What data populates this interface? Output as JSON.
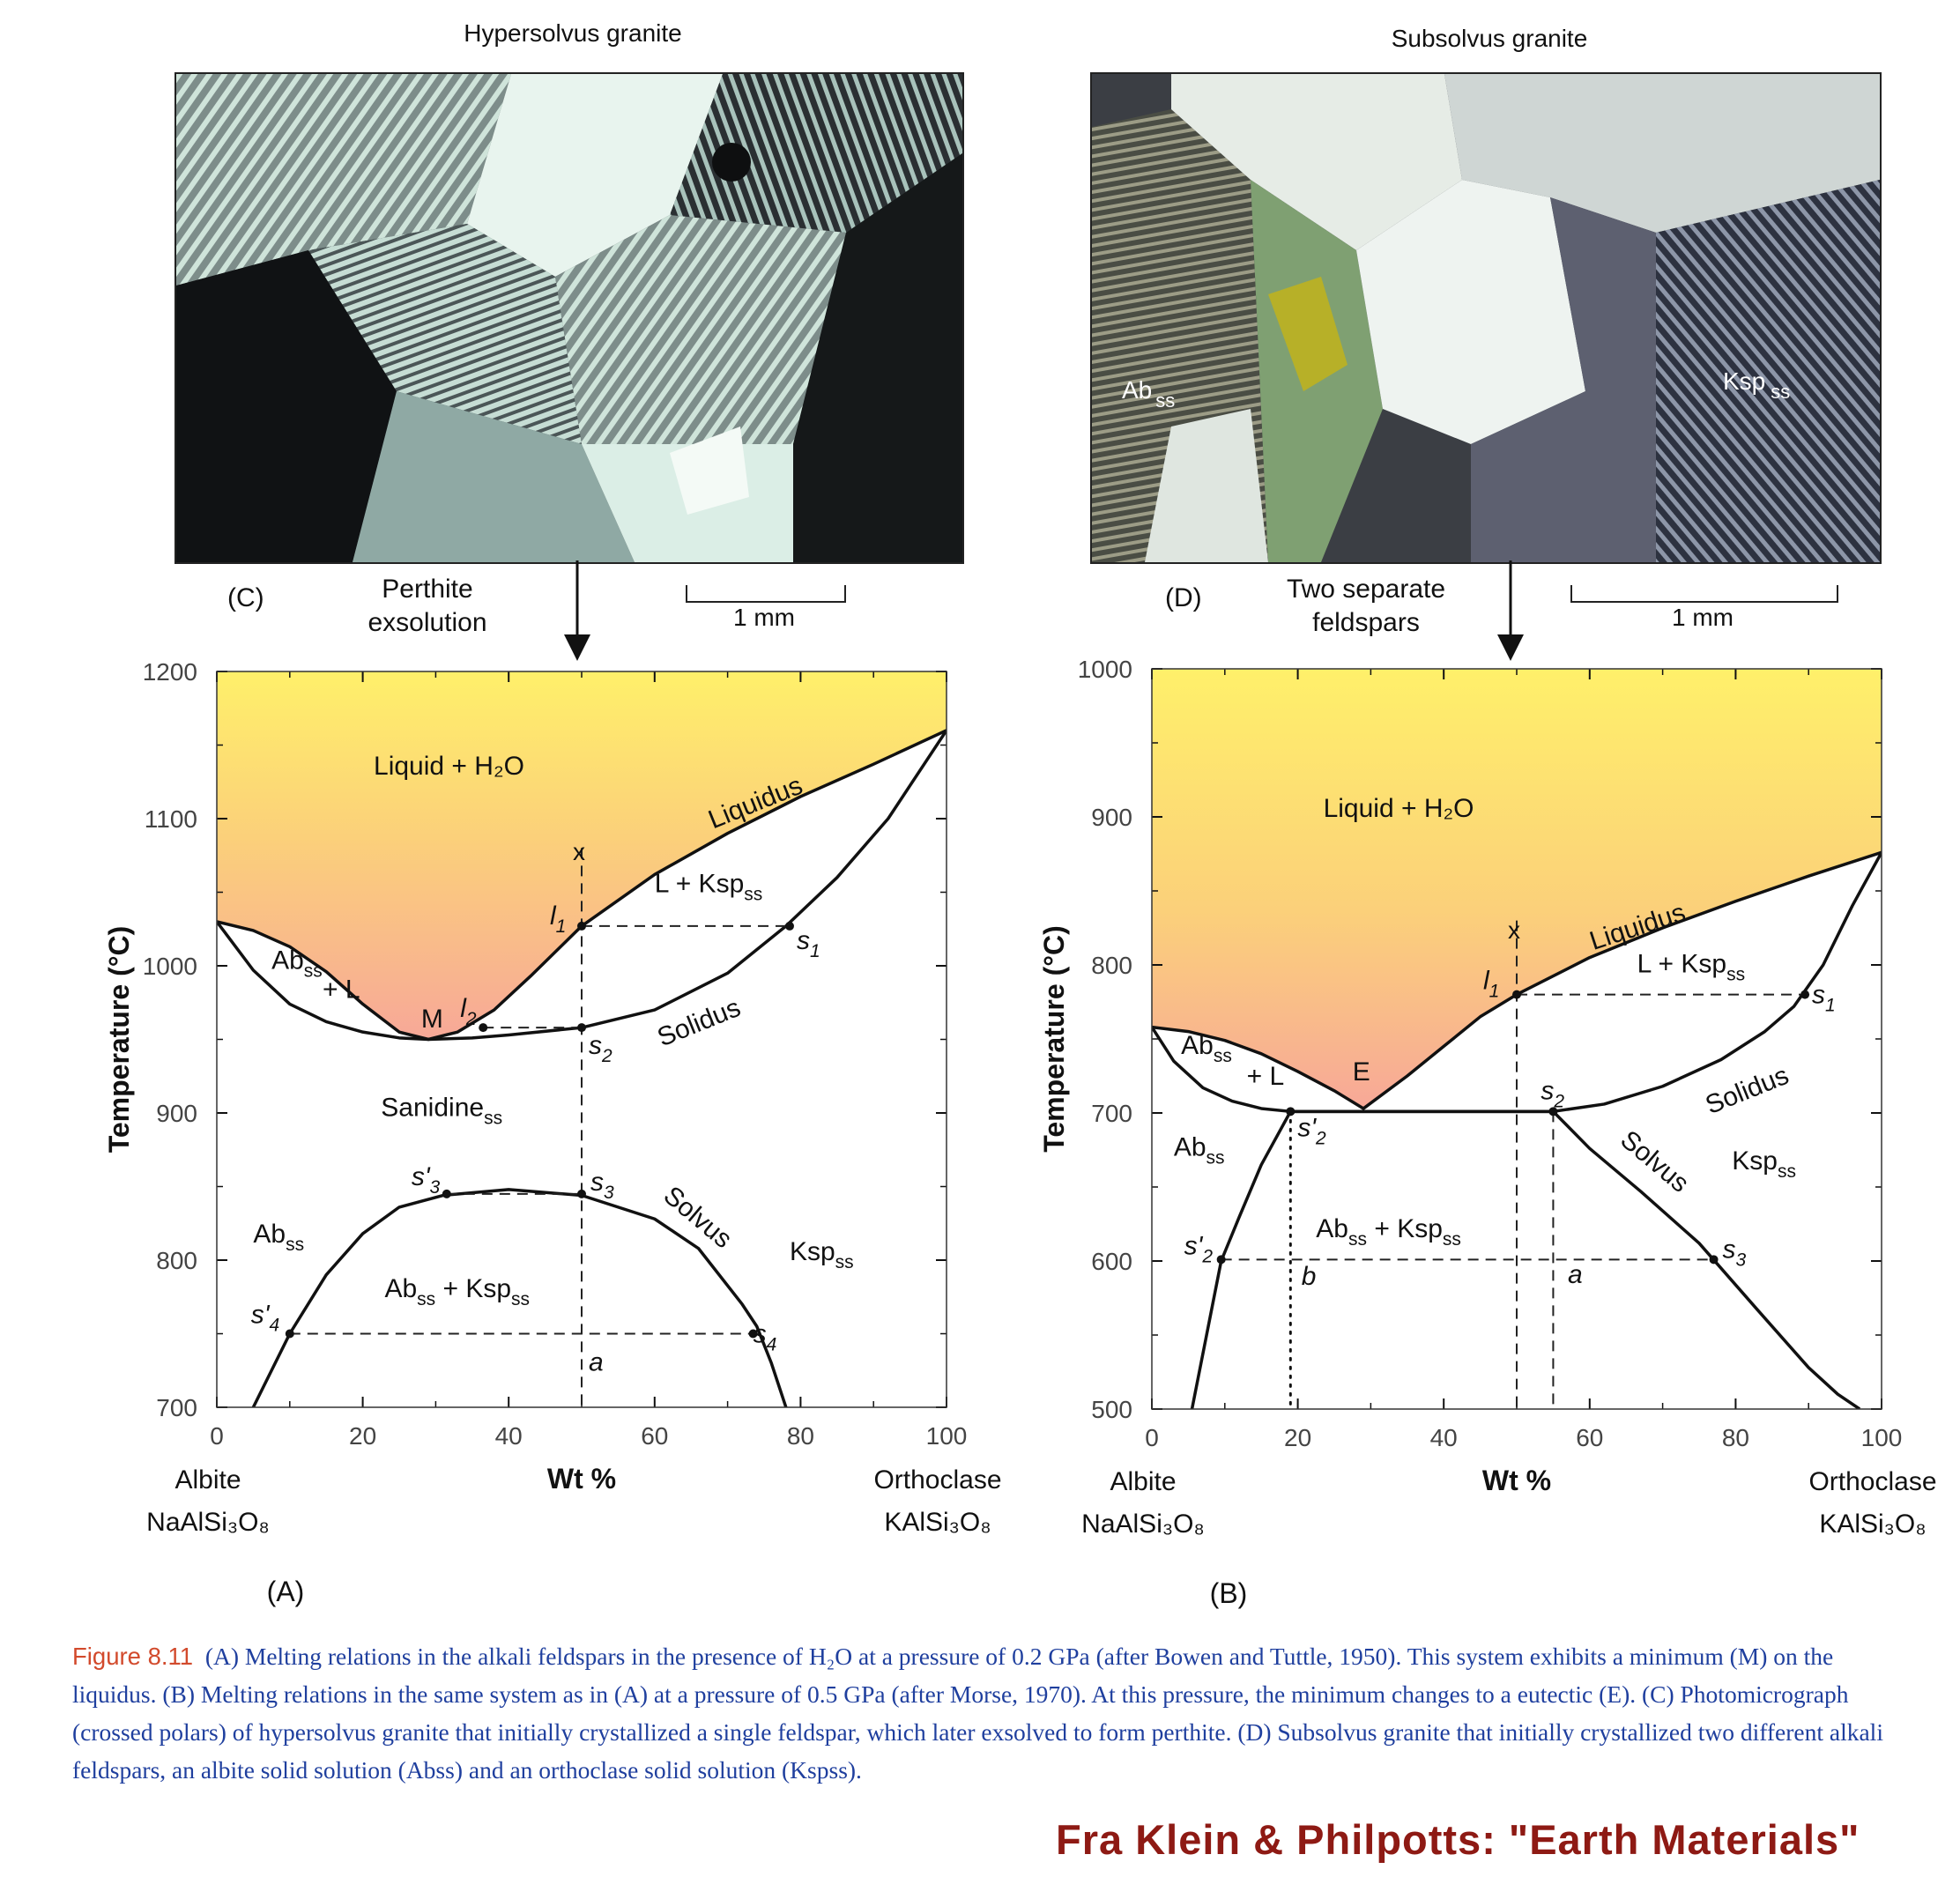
{
  "photos": {
    "left": {
      "title": "Hypersolvus granite",
      "panel": "(C)",
      "annotation": [
        "Perthite",
        "exsolution"
      ],
      "scale": "1 mm"
    },
    "right": {
      "title": "Subsolvus granite",
      "panel": "(D)",
      "annotation": [
        "Two separate",
        "feldspars"
      ],
      "scale": "1 mm",
      "labels": {
        "ab": "Ab",
        "ab_sub": "ss",
        "ksp": "Ksp",
        "ksp_sub": "ss"
      }
    }
  },
  "chart_data": [
    {
      "panel": "(A)",
      "type": "line",
      "xlabel": "Wt %",
      "ylabel": "Temperature (°C)",
      "xlim": [
        0,
        100
      ],
      "ylim": [
        700,
        1200
      ],
      "xticks": [
        0,
        20,
        40,
        60,
        80,
        100
      ],
      "yticks": [
        700,
        800,
        900,
        1000,
        1100,
        1200
      ],
      "x_endmembers": {
        "left": [
          "Albite",
          "NaAlSi₃O₈"
        ],
        "right": [
          "Orthoclase",
          "KAlSi₃O₈"
        ]
      },
      "series": [
        {
          "name": "Liquidus",
          "x": [
            0,
            5,
            10,
            15,
            20,
            25,
            29,
            33,
            38,
            43,
            50,
            60,
            70,
            80,
            90,
            100
          ],
          "y": [
            1030,
            1024,
            1013,
            996,
            974,
            955,
            950,
            955,
            970,
            993,
            1027,
            1062,
            1090,
            1115,
            1137,
            1160
          ]
        },
        {
          "name": "Solidus",
          "x": [
            0,
            5,
            10,
            15,
            20,
            25,
            29,
            35,
            40,
            50,
            60,
            70,
            78,
            85,
            92,
            100
          ],
          "y": [
            1030,
            997,
            974,
            962,
            955,
            951,
            950,
            951,
            953,
            958,
            970,
            995,
            1027,
            1060,
            1100,
            1160
          ]
        },
        {
          "name": "Solvus",
          "x": [
            5,
            8,
            10,
            15,
            20,
            25,
            31,
            40,
            50,
            60,
            66,
            72,
            74,
            76,
            78
          ],
          "y": [
            700,
            730,
            750,
            790,
            818,
            836,
            844,
            848,
            844,
            828,
            808,
            770,
            755,
            730,
            700
          ]
        }
      ],
      "points": [
        {
          "label": "l",
          "sub": "1",
          "x": 50,
          "y": 1027
        },
        {
          "label": "s",
          "sub": "1",
          "x": 78.5,
          "y": 1027
        },
        {
          "label": "l",
          "sub": "2",
          "x": 36.5,
          "y": 958
        },
        {
          "label": "s",
          "sub": "2",
          "x": 50,
          "y": 958
        },
        {
          "label": "s'",
          "sub": "3",
          "x": 31.5,
          "y": 845
        },
        {
          "label": "s",
          "sub": "3",
          "x": 50,
          "y": 845
        },
        {
          "label": "s'",
          "sub": "4",
          "x": 10,
          "y": 750
        },
        {
          "label": "s",
          "sub": "4",
          "x": 73.5,
          "y": 750
        }
      ],
      "markers": {
        "x_mark": "x",
        "a_mark": "a",
        "min_label": "M"
      },
      "fields": {
        "liquid": "Liquid + H₂O",
        "lksp": "L + Ksp",
        "lksp_sub": "ss",
        "abl1": "Ab",
        "abl1_sub": "ss",
        "abl2": "+ L",
        "sanidine": "Sanidine",
        "sanidine_sub": "ss",
        "ab": "Ab",
        "ab_sub": "ss",
        "ksp": "Ksp",
        "ksp_sub": "ss",
        "abksp1": "Ab",
        "abksp1_sub": "ss",
        "abksp2": " + Ksp",
        "abksp2_sub": "ss"
      },
      "curve_labels": {
        "liquidus": "Liquidus",
        "solidus": "Solidus",
        "solvus": "Solvus"
      }
    },
    {
      "panel": "(B)",
      "type": "line",
      "xlabel": "Wt %",
      "ylabel": "Temperature (°C)",
      "xlim": [
        0,
        100
      ],
      "ylim": [
        500,
        1000
      ],
      "xticks": [
        0,
        20,
        40,
        60,
        80,
        100
      ],
      "yticks": [
        500,
        600,
        700,
        800,
        900,
        1000
      ],
      "x_endmembers": {
        "left": [
          "Albite",
          "NaAlSi₃O₈"
        ],
        "right": [
          "Orthoclase",
          "KAlSi₃O₈"
        ]
      },
      "series": [
        {
          "name": "Liquidus",
          "x": [
            0,
            5,
            10,
            15,
            20,
            25,
            29,
            35,
            40,
            45,
            50,
            60,
            70,
            80,
            90,
            100
          ],
          "y": [
            758,
            755,
            749,
            740,
            728,
            715,
            703,
            725,
            745,
            765,
            780,
            805,
            825,
            843,
            860,
            876
          ]
        },
        {
          "name": "Solidus",
          "x": [
            0,
            3,
            7,
            11,
            15,
            19,
            19,
            55,
            55,
            62,
            70,
            78,
            84,
            88,
            92,
            96,
            100
          ],
          "y": [
            758,
            735,
            717,
            708,
            703,
            701,
            701,
            701,
            701,
            706,
            718,
            736,
            755,
            772,
            800,
            840,
            876
          ]
        },
        {
          "name": "Solvus",
          "x": [
            5.5,
            7.5,
            9.5,
            12,
            15,
            19,
            19,
            55,
            60,
            67,
            75,
            83,
            90,
            94,
            97
          ],
          "y": [
            500,
            550,
            600,
            630,
            665,
            701,
            701,
            701,
            676,
            647,
            612,
            567,
            528,
            510,
            500
          ]
        }
      ],
      "points": [
        {
          "label": "l",
          "sub": "1",
          "x": 50,
          "y": 780
        },
        {
          "label": "s",
          "sub": "1",
          "x": 89.5,
          "y": 780
        },
        {
          "label": "s",
          "sub": "2",
          "x": 55,
          "y": 701
        },
        {
          "label": "s'",
          "sub": "2",
          "x": 19,
          "y": 701
        },
        {
          "label": "s'",
          "sub": "2",
          "x": 9.5,
          "y": 601
        },
        {
          "label": "s",
          "sub": "3",
          "x": 77,
          "y": 601
        }
      ],
      "markers": {
        "x_mark": "x",
        "a_mark": "a",
        "b_mark": "b",
        "eutectic_label": "E"
      },
      "fields": {
        "liquid": "Liquid + H₂O",
        "lksp": "L + Ksp",
        "lksp_sub": "ss",
        "abl1": "Ab",
        "abl1_sub": "ss",
        "abl2": "+ L",
        "ab": "Ab",
        "ab_sub": "ss",
        "ksp": "Ksp",
        "ksp_sub": "ss",
        "abksp1": "Ab",
        "abksp1_sub": "ss",
        "abksp2": " + Ksp",
        "abksp2_sub": "ss"
      },
      "curve_labels": {
        "liquidus": "Liquidus",
        "solidus": "Solidus",
        "solvus": "Solvus"
      }
    }
  ],
  "caption": {
    "figure": "Figure 8.11",
    "text": "(A) Melting relations in the alkali feldspars in the presence of H₂O at a pressure of 0.2 GPa (after Bowen and Tuttle, 1950). This system exhibits a minimum (M) on the liquidus. (B) Melting relations in the same system as in (A) at a pressure of 0.5 GPa (after Morse, 1970). At this pressure, the minimum changes to a eutectic (E). (C) Photomicrograph (crossed polars) of hypersolvus granite that initially crystallized a single feldspar, which later exsolved to form perthite. (D) Subsolvus granite that initially crystallized two different alkali feldspars, an albite solid solution (Abss) and an orthoclase solid solution (Kspss)."
  },
  "credit": "Fra Klein & Philpotts: \"Earth Materials\"",
  "colors": {
    "caption_blue": "#1f3f9e",
    "figure_red": "#d24a2c",
    "credit_red": "#8e1a14",
    "gradient_top": "#fff06a",
    "gradient_bottom": "#f7a898"
  }
}
